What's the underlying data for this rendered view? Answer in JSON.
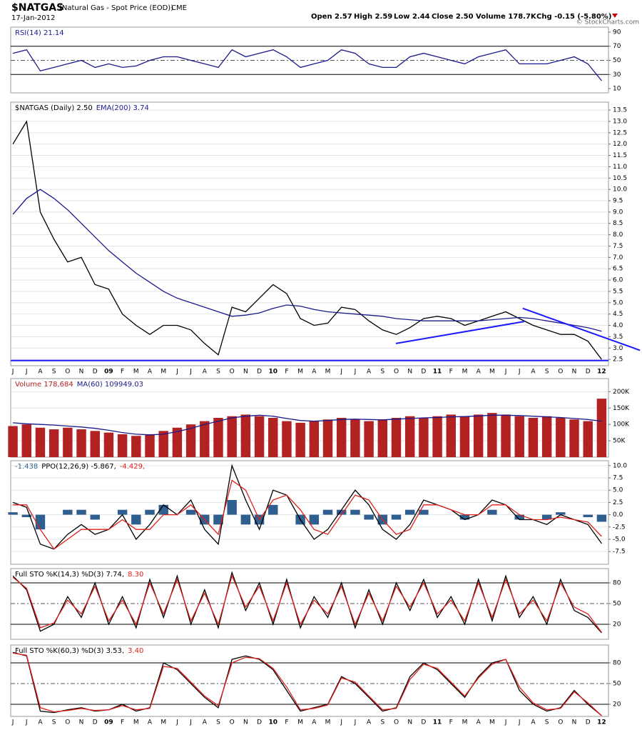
{
  "header": {
    "symbol": "$NATGAS",
    "name": "(Natural Gas - Spot Price (EOD))",
    "exchange": "CME",
    "date": "17-Jan-2012",
    "quote": [
      "Open 2.57",
      "High 2.59",
      "Low 2.44",
      "Close 2.50",
      "Volume 178.7K",
      "Chg -0.15 (-5.80%)"
    ],
    "credit": "© StockCharts.com"
  },
  "chart_data": [
    {
      "type": "line",
      "xlim": [
        -0.16,
        43.5
      ],
      "ylim": [
        4,
        97
      ],
      "yticks": [
        90,
        70,
        50,
        30,
        10
      ],
      "levels": [
        70,
        30
      ],
      "dashed_levels": [
        50
      ],
      "series": [
        {
          "name": "RSI(14) 21.14",
          "color": "#1a1a8c",
          "values": [
            60,
            65,
            35,
            40,
            45,
            50,
            40,
            45,
            40,
            42,
            50,
            55,
            55,
            50,
            45,
            40,
            65,
            55,
            60,
            65,
            55,
            40,
            45,
            50,
            65,
            60,
            45,
            40,
            40,
            55,
            60,
            55,
            50,
            45,
            55,
            60,
            65,
            45,
            45,
            45,
            50,
            55,
            45,
            21.14
          ]
        }
      ]
    },
    {
      "type": "line",
      "xlim": [
        -0.16,
        43.5
      ],
      "ylim": [
        2.22,
        13.85
      ],
      "grid": true,
      "categories": [
        "J",
        "J",
        "A",
        "S",
        "O",
        "N",
        "D",
        "09",
        "F",
        "M",
        "A",
        "M",
        "J",
        "J",
        "A",
        "S",
        "O",
        "N",
        "D",
        "10",
        "F",
        "M",
        "A",
        "M",
        "J",
        "J",
        "A",
        "S",
        "O",
        "N",
        "D",
        "11",
        "F",
        "M",
        "A",
        "M",
        "J",
        "J",
        "A",
        "S",
        "O",
        "N",
        "D",
        "12"
      ],
      "yticks": [
        2.5,
        {
          "value": 3,
          "label": "3.0"
        },
        3.5,
        {
          "value": 4,
          "label": "4.0"
        },
        4.5,
        {
          "value": 5,
          "label": "5.0"
        },
        5.5,
        {
          "value": 6,
          "label": "6.0"
        },
        6.5,
        {
          "value": 7,
          "label": "7.0"
        },
        7.5,
        {
          "value": 8,
          "label": "8.0"
        },
        8.5,
        {
          "value": 9,
          "label": "9.0"
        },
        9.5,
        {
          "value": 10,
          "label": "10.0"
        },
        10.5,
        {
          "value": 11,
          "label": "11.0"
        },
        11.5,
        {
          "value": 12,
          "label": "12.0"
        },
        12.5,
        {
          "value": 13,
          "label": "13.0"
        },
        13.5
      ],
      "series": [
        {
          "name": "$NATGAS (Daily) 2.50",
          "color": "#000000",
          "values": [
            12.0,
            13.0,
            9.0,
            7.8,
            6.8,
            7.0,
            5.8,
            5.6,
            4.5,
            4.0,
            3.6,
            4.0,
            4.0,
            3.8,
            3.2,
            2.7,
            4.8,
            4.6,
            5.2,
            5.8,
            5.4,
            4.3,
            4.0,
            4.1,
            4.8,
            4.7,
            4.2,
            3.8,
            3.6,
            3.9,
            4.3,
            4.4,
            4.3,
            4.0,
            4.2,
            4.4,
            4.6,
            4.3,
            4.0,
            3.8,
            3.6,
            3.6,
            3.3,
            2.5
          ]
        },
        {
          "name": "EMA(200) 3.74",
          "color": "#1a1a8c",
          "values": [
            8.9,
            9.6,
            10.0,
            9.6,
            9.1,
            8.5,
            7.9,
            7.3,
            6.8,
            6.3,
            5.9,
            5.5,
            5.2,
            5.0,
            4.8,
            4.6,
            4.4,
            4.45,
            4.55,
            4.75,
            4.9,
            4.85,
            4.7,
            4.6,
            4.55,
            4.5,
            4.45,
            4.4,
            4.3,
            4.25,
            4.2,
            4.2,
            4.2,
            4.2,
            4.2,
            4.25,
            4.3,
            4.35,
            4.3,
            4.2,
            4.1,
            4.0,
            3.9,
            3.74
          ]
        }
      ],
      "trendlines": [
        {
          "color": "#1a1aff",
          "x": [
            -0.16,
            43.5
          ],
          "y": [
            2.45,
            2.45
          ]
        },
        {
          "color": "#1a1aff",
          "x": [
            27.97,
            37.34
          ],
          "y": [
            3.2,
            4.17
          ]
        },
        {
          "color": "#1a1aff",
          "x": [
            37.24,
            45.8
          ],
          "y": [
            4.75,
            2.9
          ]
        }
      ]
    },
    {
      "type": "bar",
      "xlim": [
        -0.16,
        43.5
      ],
      "ylim": [
        0,
        240000
      ],
      "grid": true,
      "yticks": [
        {
          "value": 200000,
          "label": "200K"
        },
        {
          "value": 150000,
          "label": "150K"
        },
        {
          "value": 100000,
          "label": "100K"
        },
        {
          "value": 50000,
          "label": "50K"
        }
      ],
      "series": [
        {
          "name": "Volume 178,684",
          "color": "#b22222",
          "values": [
            95000,
            100000,
            90000,
            85000,
            90000,
            85000,
            80000,
            75000,
            70000,
            65000,
            70000,
            80000,
            90000,
            100000,
            110000,
            120000,
            125000,
            130000,
            125000,
            120000,
            110000,
            105000,
            110000,
            115000,
            120000,
            115000,
            110000,
            115000,
            120000,
            125000,
            120000,
            125000,
            130000,
            125000,
            130000,
            135000,
            130000,
            125000,
            120000,
            125000,
            120000,
            115000,
            110000,
            178684
          ]
        },
        {
          "name": "MA(60) 109949.03",
          "color": "#1a1a8c",
          "type": "line",
          "values": [
            105000,
            102000,
            100000,
            98000,
            95000,
            92000,
            88000,
            82000,
            75000,
            70000,
            68000,
            70000,
            78000,
            88000,
            100000,
            110000,
            120000,
            125000,
            128000,
            125000,
            118000,
            112000,
            110000,
            112000,
            115000,
            116000,
            115000,
            114000,
            116000,
            118000,
            120000,
            121000,
            123000,
            124000,
            126000,
            128000,
            128000,
            127000,
            125000,
            123000,
            121000,
            118000,
            115000,
            109949.03
          ]
        }
      ]
    },
    {
      "type": "line",
      "xlim": [
        -0.16,
        43.5
      ],
      "ylim": [
        -10.1,
        11.0
      ],
      "grid": true,
      "yticks": [
        {
          "value": 10,
          "label": "10.0"
        },
        7.5,
        {
          "value": 5,
          "label": "5.0"
        },
        2.5,
        {
          "value": 0,
          "label": "0.0"
        },
        -2.5,
        {
          "value": -5,
          "label": "-5.0"
        },
        -7.5
      ],
      "series": [
        {
          "name": "-1.438",
          "color": "#2f5f8f",
          "type": "bar",
          "values": [
            0.5,
            -0.5,
            -3,
            0,
            1,
            1,
            -1,
            0,
            1,
            -2,
            1,
            2,
            0,
            1,
            -2,
            -2,
            3,
            -2,
            -2,
            2,
            0,
            -2,
            -2,
            1,
            1,
            1,
            -1,
            -2,
            -1,
            1,
            1,
            0,
            0,
            -1,
            0,
            1,
            0,
            -1,
            0,
            -1,
            0.5,
            0,
            -0.5,
            -1.438
          ]
        },
        {
          "name": "PPO(12,26,9) -5.867,",
          "color": "#000000",
          "values": [
            2.5,
            1.5,
            -6,
            -7,
            -4,
            -2,
            -4,
            -3,
            0,
            -5,
            -2,
            2,
            0,
            3,
            -3,
            -6,
            10,
            3,
            -3,
            5,
            4,
            -1,
            -5,
            -3,
            1,
            5,
            2,
            -3,
            -5,
            -2,
            3,
            2,
            1,
            -1,
            0,
            3,
            2,
            -1,
            -1,
            -2,
            0,
            -1,
            -2,
            -5.867
          ]
        },
        {
          "name": "-4.429,",
          "color": "#e0201b",
          "values": [
            2,
            2,
            -3,
            -7,
            -5,
            -3,
            -3,
            -3,
            -1,
            -3,
            -3,
            0,
            0,
            2,
            -1,
            -4,
            7,
            5,
            -1,
            3,
            4,
            1,
            -3,
            -4,
            0,
            4,
            3,
            -1,
            -4,
            -3,
            2,
            2,
            1,
            0,
            0,
            2,
            2,
            0,
            -1,
            -1,
            -0.5,
            -1,
            -1.5,
            -4.429
          ]
        }
      ]
    },
    {
      "type": "line",
      "xlim": [
        -0.16,
        43.5
      ],
      "ylim": [
        -1.7,
        100.7
      ],
      "yticks": [
        80,
        50,
        20
      ],
      "levels": [
        80,
        20
      ],
      "dashed_levels": [
        50
      ],
      "series": [
        {
          "name": "Full STO %K(14,3) %D(3) 7.74,",
          "color": "#000000",
          "values": [
            90,
            70,
            10,
            20,
            60,
            30,
            80,
            20,
            60,
            15,
            85,
            30,
            90,
            20,
            70,
            15,
            95,
            40,
            80,
            20,
            85,
            15,
            60,
            30,
            80,
            15,
            70,
            20,
            80,
            40,
            85,
            30,
            60,
            20,
            85,
            25,
            90,
            30,
            60,
            20,
            85,
            40,
            30,
            7.74
          ]
        },
        {
          "name": "8.30",
          "color": "#e0201b",
          "values": [
            88,
            72,
            15,
            22,
            55,
            35,
            75,
            25,
            55,
            20,
            80,
            35,
            85,
            25,
            65,
            20,
            90,
            45,
            75,
            25,
            80,
            20,
            55,
            35,
            75,
            20,
            65,
            25,
            75,
            45,
            80,
            35,
            55,
            25,
            80,
            30,
            85,
            35,
            55,
            25,
            80,
            45,
            35,
            8.3
          ]
        }
      ]
    },
    {
      "type": "line",
      "xlim": [
        -0.16,
        43.5
      ],
      "ylim": [
        2.4,
        105.8
      ],
      "yticks": [
        80,
        50,
        20
      ],
      "levels": [
        80,
        20
      ],
      "dashed_levels": [
        50
      ],
      "categories": [
        "J",
        "J",
        "A",
        "S",
        "O",
        "N",
        "D",
        "09",
        "F",
        "M",
        "A",
        "M",
        "J",
        "J",
        "A",
        "S",
        "O",
        "N",
        "D",
        "10",
        "F",
        "M",
        "A",
        "M",
        "J",
        "J",
        "A",
        "S",
        "O",
        "N",
        "D",
        "11",
        "F",
        "M",
        "A",
        "M",
        "J",
        "J",
        "A",
        "S",
        "O",
        "N",
        "D",
        "12"
      ],
      "series": [
        {
          "name": "Full STO %K(60,3) %D(3) 3.53,",
          "color": "#000000",
          "values": [
            95,
            90,
            10,
            8,
            12,
            15,
            10,
            12,
            20,
            10,
            15,
            80,
            70,
            50,
            30,
            15,
            85,
            90,
            85,
            70,
            40,
            10,
            15,
            20,
            60,
            50,
            30,
            10,
            15,
            60,
            80,
            70,
            50,
            30,
            60,
            80,
            85,
            40,
            20,
            10,
            15,
            40,
            20,
            3.53
          ]
        },
        {
          "name": "3.40",
          "color": "#e0201b",
          "values": [
            94,
            91,
            15,
            9,
            11,
            14,
            11,
            12,
            18,
            12,
            14,
            75,
            72,
            52,
            32,
            18,
            80,
            88,
            86,
            72,
            45,
            12,
            14,
            19,
            58,
            52,
            32,
            12,
            14,
            56,
            78,
            72,
            52,
            32,
            58,
            78,
            85,
            45,
            22,
            12,
            14,
            38,
            22,
            3.4
          ]
        }
      ]
    }
  ]
}
